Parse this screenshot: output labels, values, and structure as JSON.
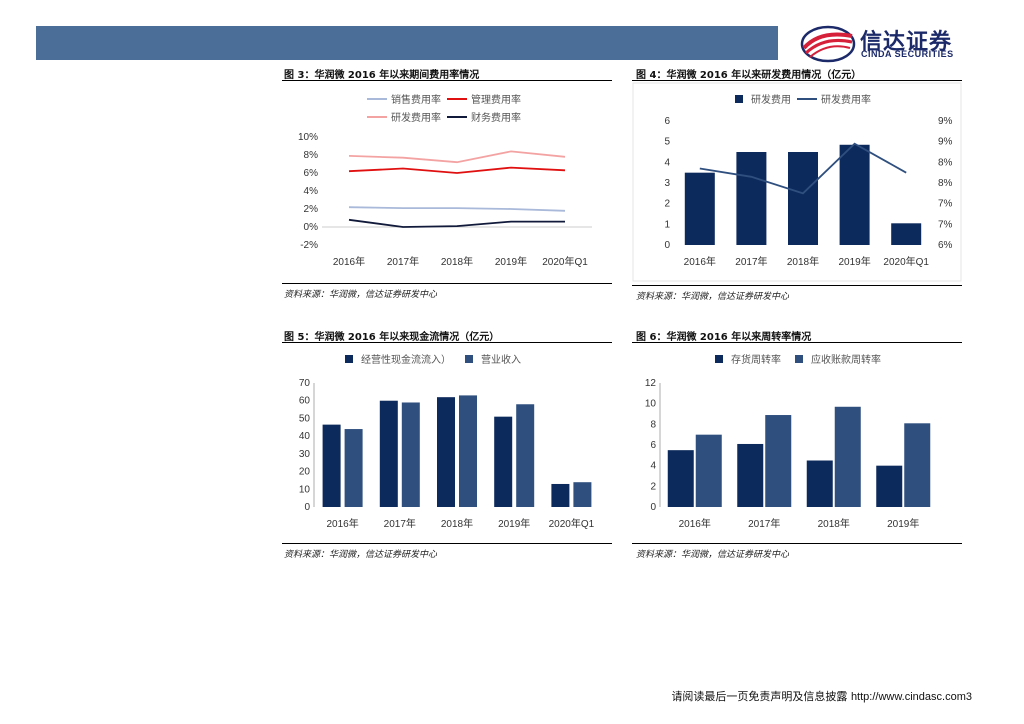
{
  "logo": {
    "cn": "信达证券",
    "en": "CINDA SECURITIES"
  },
  "fig3": {
    "title": "图 3：华润微 2016 年以来期间费用率情况",
    "source": "资料来源：华润微，信达证券研发中心"
  },
  "fig4": {
    "title": "图 4：华润微 2016 年以来研发费用情况（亿元）",
    "source": "资料来源：华润微，信达证券研发中心"
  },
  "fig5": {
    "title": "图 5：华润微 2016 年以来现金流情况（亿元）",
    "source": "资料来源：华润微，信达证券研发中心"
  },
  "fig6": {
    "title": "图 6：华润微 2016 年以来周转率情况",
    "source": "资料来源：华润微，信达证券研发中心"
  },
  "footer": {
    "disclaimer": "请阅读最后一页免责声明及信息披露",
    "url": "http://www.cindasc.com3"
  },
  "colors": {
    "navy": "#0d2a5c",
    "mid": "#2f4f7f",
    "red": "#e01010",
    "pink": "#f4a3a3",
    "lightblue": "#a9b9d9",
    "header": "#4b6e98"
  },
  "chart_data": [
    {
      "id": "fig3",
      "type": "line",
      "categories": [
        "2016年",
        "2017年",
        "2018年",
        "2019年",
        "2020年Q1"
      ],
      "y_ticks": [
        "10%",
        "8%",
        "6%",
        "4%",
        "2%",
        "0%",
        "-2%"
      ],
      "ylim": [
        -2,
        10
      ],
      "legend_position": "top",
      "series": [
        {
          "name": "销售费用率",
          "color": "#a9b9d9",
          "values": [
            2.2,
            2.1,
            2.1,
            2.0,
            1.8
          ]
        },
        {
          "name": "管理费用率",
          "color": "#e01010",
          "values": [
            6.2,
            6.5,
            6.0,
            6.6,
            6.3
          ]
        },
        {
          "name": "研发费用率",
          "color": "#f4a3a3",
          "values": [
            7.9,
            7.7,
            7.2,
            8.4,
            7.8
          ]
        },
        {
          "name": "财务费用率",
          "color": "#111a3a",
          "values": [
            0.8,
            0.0,
            0.1,
            0.6,
            0.6
          ]
        }
      ]
    },
    {
      "id": "fig4",
      "type": "bar",
      "categories": [
        "2016年",
        "2017年",
        "2018年",
        "2019年",
        "2020年Q1"
      ],
      "y_ticks": [
        "6",
        "5",
        "4",
        "3",
        "2",
        "1",
        "0"
      ],
      "y2_ticks": [
        "9%",
        "9%",
        "8%",
        "8%",
        "7%",
        "7%",
        "6%"
      ],
      "ylim": [
        0,
        6
      ],
      "y2lim": [
        6,
        9
      ],
      "legend_position": "top",
      "series": [
        {
          "name": "研发费用",
          "type": "bar",
          "color": "#0d2a5c",
          "values": [
            3.5,
            4.5,
            4.5,
            4.85,
            1.05
          ]
        },
        {
          "name": "研发费用率",
          "type": "line",
          "axis": "right",
          "color": "#2f4f7f",
          "values": [
            7.85,
            7.65,
            7.25,
            8.45,
            7.75
          ]
        }
      ]
    },
    {
      "id": "fig5",
      "type": "bar",
      "categories": [
        "2016年",
        "2017年",
        "2018年",
        "2019年",
        "2020年Q1"
      ],
      "y_ticks": [
        "70",
        "60",
        "50",
        "40",
        "30",
        "20",
        "10",
        "0"
      ],
      "ylim": [
        0,
        70
      ],
      "legend_position": "top",
      "series": [
        {
          "name": "经营性现金流流入）",
          "color": "#0d2a5c",
          "values": [
            46.5,
            60,
            62,
            51,
            13
          ]
        },
        {
          "name": "营业收入",
          "color": "#2f4f7f",
          "values": [
            44,
            59,
            63,
            58,
            14
          ]
        }
      ]
    },
    {
      "id": "fig6",
      "type": "bar",
      "categories": [
        "2016年",
        "2017年",
        "2018年",
        "2019年"
      ],
      "y_ticks": [
        "12",
        "10",
        "8",
        "6",
        "4",
        "2",
        "0"
      ],
      "ylim": [
        0,
        12
      ],
      "legend_position": "top",
      "series": [
        {
          "name": "存货周转率",
          "color": "#0d2a5c",
          "values": [
            5.5,
            6.1,
            4.5,
            4.0
          ]
        },
        {
          "name": "应收账款周转率",
          "color": "#2f4f7f",
          "values": [
            7.0,
            8.9,
            9.7,
            8.1
          ]
        }
      ]
    }
  ]
}
